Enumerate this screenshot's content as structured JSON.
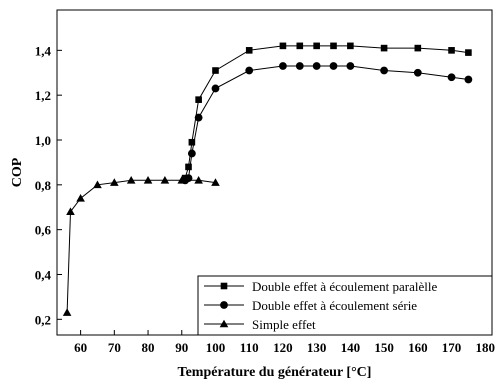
{
  "chart_data": {
    "type": "line",
    "xlabel": "Température du générateur [°C]",
    "ylabel": "COP",
    "xlim": [
      53,
      182
    ],
    "ylim": [
      0.13,
      1.58
    ],
    "x_ticks": [
      60,
      70,
      80,
      90,
      100,
      110,
      120,
      130,
      140,
      150,
      160,
      170,
      180
    ],
    "x_tick_labels": [
      "60",
      "70",
      "80",
      "90",
      "100",
      "110",
      "120",
      "130",
      "140",
      "150",
      "160",
      "170",
      "180"
    ],
    "y_ticks": [
      0.2,
      0.4,
      0.6,
      0.8,
      1.0,
      1.2,
      1.4
    ],
    "y_tick_labels": [
      "0,2",
      "0,4",
      "0,6",
      "0,8",
      "1,0",
      "1,2",
      "1,4"
    ],
    "grid": false,
    "legend_position": "bottom-right",
    "series": [
      {
        "name": "Double effet à écoulement paralèlle",
        "marker": "square",
        "x": [
          91,
          92,
          93,
          95,
          100,
          110,
          120,
          125,
          130,
          135,
          140,
          150,
          160,
          170,
          175
        ],
        "y": [
          0.83,
          0.88,
          0.99,
          1.18,
          1.31,
          1.4,
          1.42,
          1.42,
          1.42,
          1.42,
          1.42,
          1.41,
          1.41,
          1.4,
          1.39
        ]
      },
      {
        "name": "Double effet à écoulement série",
        "marker": "circle",
        "x": [
          91,
          92,
          93,
          95,
          100,
          110,
          120,
          125,
          130,
          135,
          140,
          150,
          160,
          170,
          175
        ],
        "y": [
          0.82,
          0.83,
          0.94,
          1.1,
          1.23,
          1.31,
          1.33,
          1.33,
          1.33,
          1.33,
          1.33,
          1.31,
          1.3,
          1.28,
          1.27
        ]
      },
      {
        "name": "Simple effet",
        "marker": "triangle",
        "x": [
          56,
          57,
          60,
          65,
          70,
          75,
          80,
          85,
          90,
          95,
          100
        ],
        "y": [
          0.23,
          0.68,
          0.74,
          0.8,
          0.81,
          0.82,
          0.82,
          0.82,
          0.82,
          0.82,
          0.81
        ]
      }
    ]
  }
}
